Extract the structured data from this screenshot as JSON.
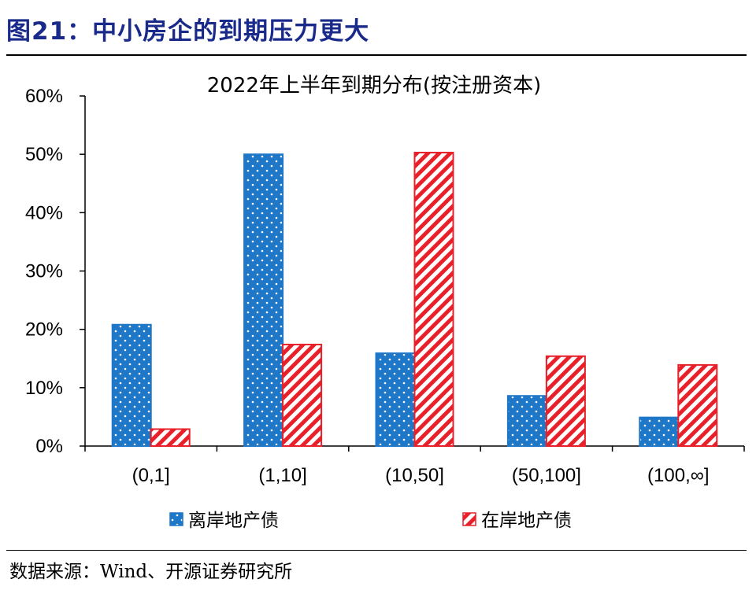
{
  "figure": {
    "title": "图21：中小房企的到期压力更大",
    "source": "数据来源：Wind、开源证券研究所"
  },
  "chart_data": {
    "type": "bar",
    "title": "2022年上半年到期分布(按注册资本)",
    "categories": [
      "(0,1]",
      "(1,10]",
      "(10,50]",
      "(50,100]",
      "(100,∞]"
    ],
    "series": [
      {
        "name": "离岸地产债",
        "values": [
          20.8,
          50.0,
          15.9,
          8.6,
          4.9
        ],
        "color": "#1f77c8",
        "pattern": "dots"
      },
      {
        "name": "在岸地产债",
        "values": [
          2.9,
          17.4,
          50.3,
          15.4,
          13.9
        ],
        "color": "#e8202a",
        "pattern": "diagonal-stripes"
      }
    ],
    "ylim": [
      0,
      60
    ],
    "yticks": [
      "0%",
      "10%",
      "20%",
      "30%",
      "40%",
      "50%",
      "60%"
    ],
    "xlabel": "",
    "ylabel": "",
    "grid": false,
    "legend_position": "bottom"
  }
}
